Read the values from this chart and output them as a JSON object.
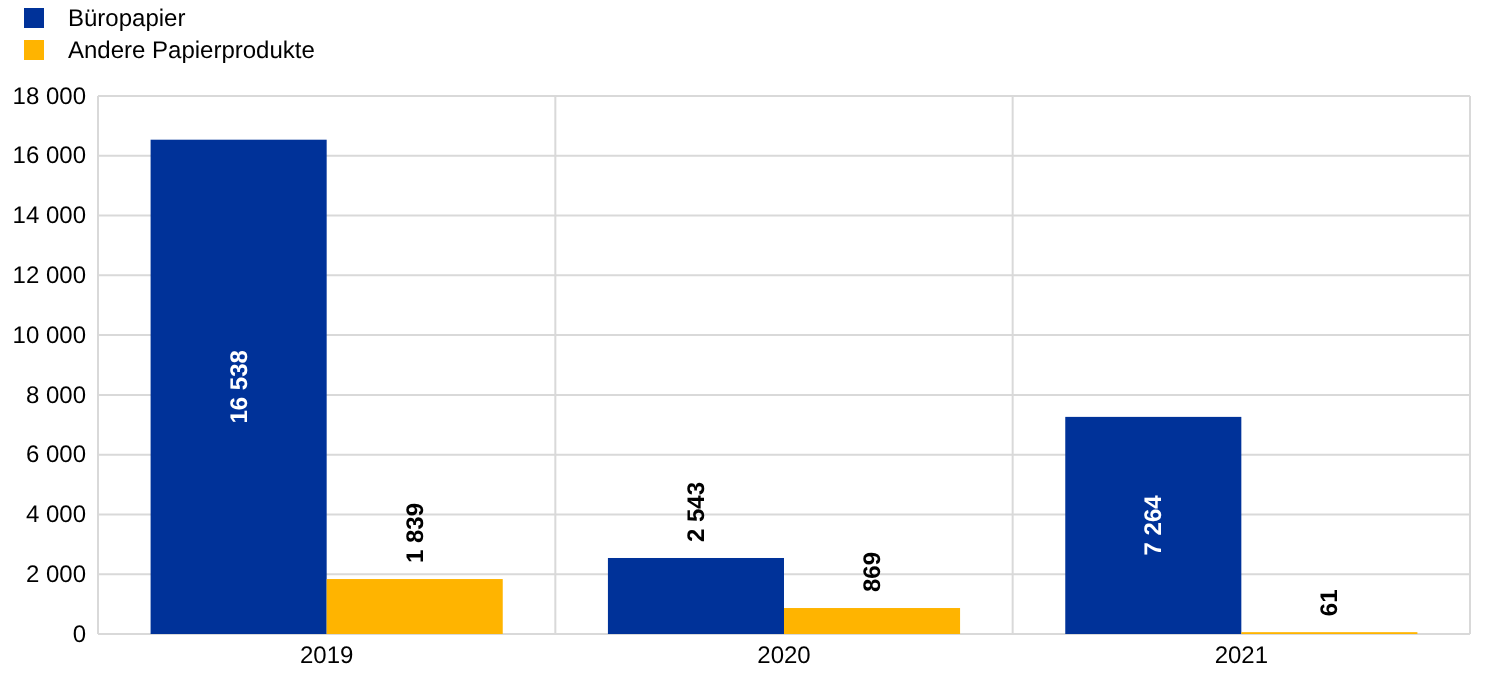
{
  "chart_data": {
    "type": "bar",
    "categories": [
      "2019",
      "2020",
      "2021"
    ],
    "series": [
      {
        "name": "Büropapier",
        "color": "#003299",
        "values": [
          16538,
          2543,
          7264
        ],
        "value_labels": [
          "16 538",
          "2 543",
          "7 264"
        ]
      },
      {
        "name": "Andere Papierprodukte",
        "color": "#ffb400",
        "values": [
          1839,
          869,
          61
        ],
        "value_labels": [
          "1 839",
          "869",
          "61"
        ]
      }
    ],
    "ylim": [
      0,
      18000
    ],
    "yticks": [
      0,
      {
        "value": 2000,
        "label": "2 000"
      },
      {
        "value": 4000,
        "label": "4 000"
      },
      {
        "value": 6000,
        "label": "6 000"
      },
      {
        "value": 8000,
        "label": "8 000"
      },
      {
        "value": 10000,
        "label": "10 000"
      },
      {
        "value": 12000,
        "label": "12 000"
      },
      {
        "value": 14000,
        "label": "14 000"
      },
      {
        "value": 16000,
        "label": "16 000"
      },
      {
        "value": 18000,
        "label": "18 000"
      }
    ],
    "grid": true,
    "legend": "top left"
  }
}
